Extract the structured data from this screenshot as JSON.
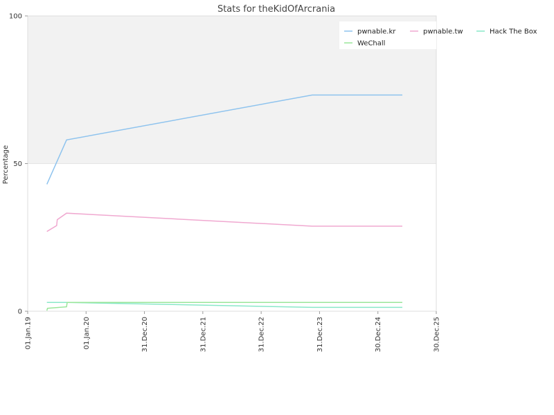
{
  "chart_data": {
    "type": "line",
    "title": "Stats for theKidOfArcrania",
    "xlabel": "",
    "ylabel": "Percentage",
    "x_tick_labels": [
      "01.Jan.19",
      "01.Jan.20",
      "31.Dec.20",
      "31.Dec.21",
      "31.Dec.22",
      "31.Dec.23",
      "30.Dec.24",
      "30.Dec.25"
    ],
    "y_tick_labels": [
      "0",
      "50",
      "100"
    ],
    "xlim": [
      "2019-01-01",
      "2025-12-30"
    ],
    "ylim": [
      0,
      100
    ],
    "shaded_band": [
      50,
      100
    ],
    "grid": false,
    "legend_position": "top-right",
    "series": [
      {
        "name": "pwnable.kr",
        "color": "#8ec3ee",
        "points": [
          [
            "2019-05-01",
            43
          ],
          [
            "2019-09-01",
            58
          ],
          [
            "2023-11-15",
            73.2
          ],
          [
            "2025-06-01",
            73.2
          ]
        ]
      },
      {
        "name": "pwnable.tw",
        "color": "#f0a8d0",
        "points": [
          [
            "2019-05-01",
            27
          ],
          [
            "2019-07-01",
            29
          ],
          [
            "2019-07-05",
            31
          ],
          [
            "2019-09-01",
            33.2
          ],
          [
            "2023-11-15",
            28.8
          ],
          [
            "2025-06-01",
            28.8
          ]
        ]
      },
      {
        "name": "Hack The Box",
        "color": "#88e8c8",
        "points": [
          [
            "2019-05-01",
            3
          ],
          [
            "2019-09-01",
            3
          ],
          [
            "2023-11-15",
            1.3
          ],
          [
            "2025-06-01",
            1.3
          ]
        ]
      },
      {
        "name": "WeChall",
        "color": "#99e699",
        "points": [
          [
            "2019-05-01",
            0.2
          ],
          [
            "2019-05-05",
            1
          ],
          [
            "2019-09-01",
            1.5
          ],
          [
            "2019-09-05",
            3
          ],
          [
            "2025-06-01",
            3
          ]
        ]
      }
    ]
  }
}
